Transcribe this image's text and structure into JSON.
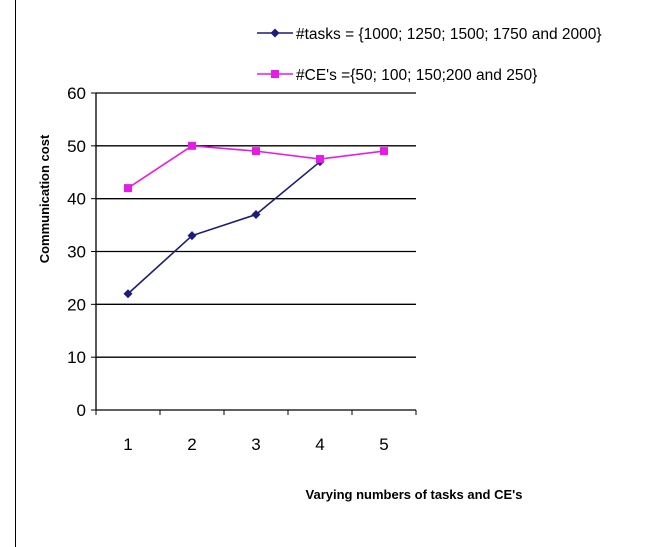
{
  "chart_data": {
    "type": "line",
    "title": "",
    "xlabel": "Varying numbers of tasks and CE's",
    "ylabel": "Communication cost",
    "categories": [
      "1",
      "2",
      "3",
      "4",
      "5"
    ],
    "ylim": [
      0,
      60
    ],
    "yticks": [
      "0",
      "10",
      "20",
      "30",
      "40",
      "50",
      "60"
    ],
    "grid": "horizontal",
    "legend": "top-right",
    "series": [
      {
        "name": "#tasks = {1000; 1250; 1500; 1750 and 2000}",
        "color": "#1c1c7c",
        "marker": "diamond",
        "values": [
          22,
          33,
          37,
          47,
          null
        ]
      },
      {
        "name": "#CE's ={50; 100; 150;200 and 250}",
        "color": "#e61ce6",
        "marker": "square",
        "values": [
          42,
          50,
          49,
          47.5,
          49
        ]
      }
    ]
  }
}
